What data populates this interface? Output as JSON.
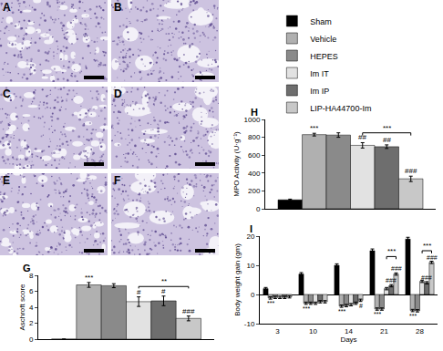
{
  "panels": {
    "labels": [
      "A",
      "B",
      "C",
      "D",
      "E",
      "F"
    ]
  },
  "chart_data": [
    {
      "title": "H",
      "type": "bar",
      "categories": [
        null
      ],
      "tick_labels": "y",
      "grid": false,
      "legend": "top",
      "y_label": "MPO Activity (U·g⁻¹)",
      "ylim": [
        0,
        1000
      ],
      "yticks": [
        0,
        200,
        400,
        600,
        800,
        1000
      ],
      "series": [
        {
          "name": "Sham",
          "color": "#000000",
          "values": [
            100
          ],
          "errors": [
            8
          ]
        },
        {
          "name": "Vehicle",
          "color": "#b0b0b0",
          "values": [
            830
          ],
          "errors": [
            15
          ]
        },
        {
          "name": "HEPES",
          "color": "#8a8a8a",
          "values": [
            825
          ],
          "errors": [
            25
          ]
        },
        {
          "name": "Im IT",
          "color": "#e2e2e2",
          "values": [
            710
          ],
          "errors": [
            30
          ]
        },
        {
          "name": "Im IP",
          "color": "#6e6e6e",
          "values": [
            695
          ],
          "errors": [
            20
          ]
        },
        {
          "name": "LIP-HA44700-Im",
          "color": "#c8c8c8",
          "values": [
            335
          ],
          "errors": [
            30
          ]
        }
      ],
      "annotations": [
        {
          "series": "Vehicle",
          "category": 0,
          "text": "***"
        },
        {
          "series": "Im IT",
          "category": 0,
          "text": "##"
        },
        {
          "series": "Im IP",
          "category": 0,
          "text": "##"
        },
        {
          "series": "LIP-HA44700-Im",
          "category": 0,
          "text": "###"
        }
      ],
      "brackets": [
        {
          "from": "Im IT",
          "to": "LIP-HA44700-Im",
          "category": 0,
          "y": 850,
          "text": "***"
        }
      ]
    },
    {
      "title": "G",
      "type": "bar",
      "categories": [
        null
      ],
      "tick_labels": "y",
      "grid": false,
      "y_label": "Aschroft score",
      "ylim": [
        0,
        8
      ],
      "yticks": [
        0,
        2,
        4,
        6,
        8
      ],
      "series": [
        {
          "name": "Sham",
          "color": "#000000",
          "values": [
            0
          ],
          "errors": [
            0
          ]
        },
        {
          "name": "Vehicle",
          "color": "#b0b0b0",
          "values": [
            6.8
          ],
          "errors": [
            0.3
          ]
        },
        {
          "name": "HEPES",
          "color": "#8a8a8a",
          "values": [
            6.7
          ],
          "errors": [
            0.25
          ]
        },
        {
          "name": "Im IT",
          "color": "#e2e2e2",
          "values": [
            4.7
          ],
          "errors": [
            0.6
          ]
        },
        {
          "name": "Im IP",
          "color": "#6e6e6e",
          "values": [
            4.8
          ],
          "errors": [
            0.6
          ]
        },
        {
          "name": "LIP-HA44700-Im",
          "color": "#c8c8c8",
          "values": [
            2.6
          ],
          "errors": [
            0.3
          ]
        }
      ],
      "annotations": [
        {
          "series": "Vehicle",
          "category": 0,
          "text": "***"
        },
        {
          "series": "Im IT",
          "category": 0,
          "text": "#"
        },
        {
          "series": "Im IP",
          "category": 0,
          "text": "#"
        },
        {
          "series": "LIP-HA44700-Im",
          "category": 0,
          "text": "###"
        }
      ],
      "brackets": [
        {
          "from": "Im IT",
          "to": "LIP-HA44700-Im",
          "category": 0,
          "y": 6.6,
          "text": "**"
        }
      ]
    },
    {
      "title": "I",
      "type": "bar",
      "categories": [
        "3",
        "10",
        "14",
        "21",
        "28"
      ],
      "grid": false,
      "x_label": "Days",
      "y_label": "Body weight gain (gm)",
      "ylim": [
        -10,
        20
      ],
      "yticks": [
        -10,
        0,
        10,
        20
      ],
      "series": [
        {
          "name": "Sham",
          "color": "#000000",
          "values": [
            2,
            7,
            10,
            15,
            19
          ],
          "errors": [
            0.4,
            0.5,
            0.5,
            0.6,
            0.6
          ]
        },
        {
          "name": "Vehicle",
          "color": "#b0b0b0",
          "values": [
            -1.2,
            -3,
            -4,
            -5,
            -5.5
          ],
          "errors": [
            0.4,
            0.4,
            0.4,
            0.4,
            0.4
          ]
        },
        {
          "name": "HEPES",
          "color": "#8a8a8a",
          "values": [
            -1,
            -3,
            -3.8,
            -5,
            -5.6
          ],
          "errors": [
            0.4,
            0.4,
            0.4,
            0.4,
            0.4
          ]
        },
        {
          "name": "Im IT",
          "color": "#e2e2e2",
          "values": [
            -1,
            -3,
            -3.5,
            2,
            4.5
          ],
          "errors": [
            0.4,
            0.4,
            0.4,
            0.4,
            0.4
          ]
        },
        {
          "name": "Im IP",
          "color": "#6e6e6e",
          "values": [
            -1,
            -2.5,
            -3,
            3,
            4
          ],
          "errors": [
            0.4,
            0.4,
            0.4,
            0.4,
            0.4
          ]
        },
        {
          "name": "LIP-HA44700-Im",
          "color": "#c8c8c8",
          "values": [
            -0.8,
            -2.5,
            -2,
            7,
            11
          ],
          "errors": [
            0.4,
            0.4,
            0.4,
            0.4,
            0.4
          ]
        }
      ],
      "annotations": [
        {
          "series": "Vehicle",
          "category": 0,
          "text": "***"
        },
        {
          "series": "Vehicle",
          "category": 1,
          "text": "***"
        },
        {
          "series": "Vehicle",
          "category": 2,
          "text": "***"
        },
        {
          "series": "Vehicle",
          "category": 3,
          "text": "***"
        },
        {
          "series": "Vehicle",
          "category": 4,
          "text": "***"
        },
        {
          "series": "LIP-HA44700-Im",
          "category": 2,
          "text": "#"
        },
        {
          "series": "Im IP",
          "category": 3,
          "text": "###"
        },
        {
          "series": "Im IP",
          "category": 4,
          "text": "###"
        },
        {
          "series": "LIP-HA44700-Im",
          "category": 3,
          "text": "###"
        },
        {
          "series": "LIP-HA44700-Im",
          "category": 4,
          "text": "###"
        }
      ],
      "brackets": [
        {
          "from": "Im IT",
          "to": "LIP-HA44700-Im",
          "category": 3,
          "y": 13,
          "text": "***"
        },
        {
          "from": "Im IT",
          "to": "LIP-HA44700-Im",
          "category": 4,
          "y": 15,
          "text": "***"
        }
      ]
    }
  ]
}
